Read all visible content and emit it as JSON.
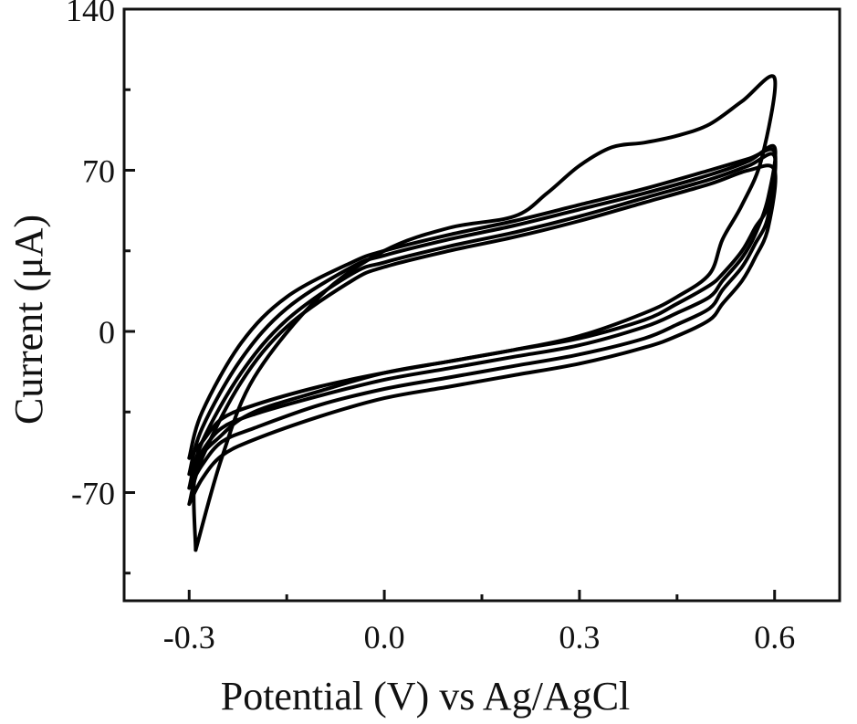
{
  "chart_data": {
    "type": "line",
    "title": "",
    "xlabel": "Potential (V) vs Ag/AgCl",
    "ylabel": "Current (μA)",
    "xlim": [
      -0.4,
      0.7
    ],
    "ylim": [
      -117,
      140
    ],
    "x_ticks": [
      "-0.3",
      "0.0",
      "0.3",
      "0.6"
    ],
    "x_tick_values": [
      -0.3,
      0.0,
      0.3,
      0.6
    ],
    "y_ticks": [
      "140",
      "70",
      "0",
      "-70"
    ],
    "y_tick_values": [
      140,
      70,
      0,
      -70
    ],
    "grid": false,
    "legend": "none",
    "line_color": "#000000",
    "series": [
      {
        "x": [
          -0.3,
          -0.28,
          -0.22,
          -0.15,
          -0.05,
          0.0,
          0.1,
          0.2,
          0.3,
          0.4,
          0.5,
          0.56,
          0.6,
          0.59,
          0.57,
          0.55,
          0.52,
          0.5,
          0.45,
          0.4,
          0.3,
          0.2,
          0.1,
          0.0,
          -0.1,
          -0.2,
          -0.25,
          -0.28,
          -0.3
        ],
        "y": [
          -55,
          -35,
          -5,
          15,
          30,
          35,
          42,
          48,
          55,
          62,
          70,
          75,
          78,
          55,
          45,
          35,
          25,
          20,
          12,
          5,
          -3,
          -8,
          -13,
          -18,
          -24,
          -32,
          -38,
          -48,
          -55
        ]
      },
      {
        "x": [
          -0.3,
          -0.28,
          -0.22,
          -0.15,
          -0.05,
          0.0,
          0.1,
          0.2,
          0.3,
          0.4,
          0.5,
          0.56,
          0.6,
          0.59,
          0.57,
          0.55,
          0.52,
          0.5,
          0.45,
          0.4,
          0.3,
          0.2,
          0.1,
          0.0,
          -0.1,
          -0.2,
          -0.25,
          -0.28,
          -0.3
        ],
        "y": [
          -68,
          -48,
          -18,
          5,
          25,
          30,
          37,
          43,
          50,
          58,
          66,
          72,
          76,
          50,
          38,
          28,
          18,
          10,
          3,
          -3,
          -10,
          -15,
          -20,
          -25,
          -32,
          -42,
          -48,
          -58,
          -68
        ]
      },
      {
        "x": [
          -0.3,
          -0.28,
          -0.22,
          -0.15,
          -0.05,
          0.0,
          0.1,
          0.2,
          0.3,
          0.4,
          0.5,
          0.56,
          0.6,
          0.59,
          0.57,
          0.55,
          0.52,
          0.5,
          0.45,
          0.4,
          0.3,
          0.2,
          0.1,
          0.0,
          -0.1,
          -0.2,
          -0.25,
          -0.28,
          -0.3
        ],
        "y": [
          -75,
          -55,
          -22,
          2,
          22,
          28,
          35,
          41,
          48,
          56,
          64,
          70,
          70,
          45,
          32,
          22,
          12,
          5,
          -2,
          -7,
          -14,
          -19,
          -24,
          -29,
          -37,
          -47,
          -54,
          -64,
          -75
        ]
      },
      {
        "x": [
          -0.3,
          -0.28,
          -0.22,
          -0.15,
          -0.05,
          0.0,
          0.1,
          0.2,
          0.3,
          0.4,
          0.5,
          0.56,
          0.6,
          0.59,
          0.57,
          0.55,
          0.52,
          0.5,
          0.45,
          0.4,
          0.3,
          0.2,
          0.1,
          0.0,
          -0.1,
          -0.2,
          -0.25,
          -0.28,
          -0.3
        ],
        "y": [
          -62,
          -42,
          -12,
          10,
          28,
          33,
          40,
          46,
          53,
          60,
          68,
          74,
          80,
          58,
          42,
          32,
          22,
          15,
          8,
          2,
          -6,
          -11,
          -16,
          -21,
          -28,
          -36,
          -42,
          -52,
          -62
        ]
      },
      {
        "x": [
          -0.29,
          -0.25,
          -0.2,
          -0.1,
          0.0,
          0.1,
          0.2,
          0.25,
          0.3,
          0.35,
          0.4,
          0.45,
          0.5,
          0.55,
          0.6,
          0.58,
          0.55,
          0.52,
          0.5,
          0.45,
          0.4,
          0.3,
          0.2,
          0.1,
          0.0,
          -0.1,
          -0.2,
          -0.25,
          -0.29,
          -0.29
        ],
        "y": [
          -95,
          -55,
          -20,
          15,
          35,
          45,
          50,
          60,
          72,
          80,
          82,
          85,
          90,
          100,
          110,
          75,
          55,
          40,
          25,
          15,
          8,
          -2,
          -8,
          -13,
          -18,
          -26,
          -35,
          -45,
          -60,
          -95
        ]
      }
    ]
  }
}
